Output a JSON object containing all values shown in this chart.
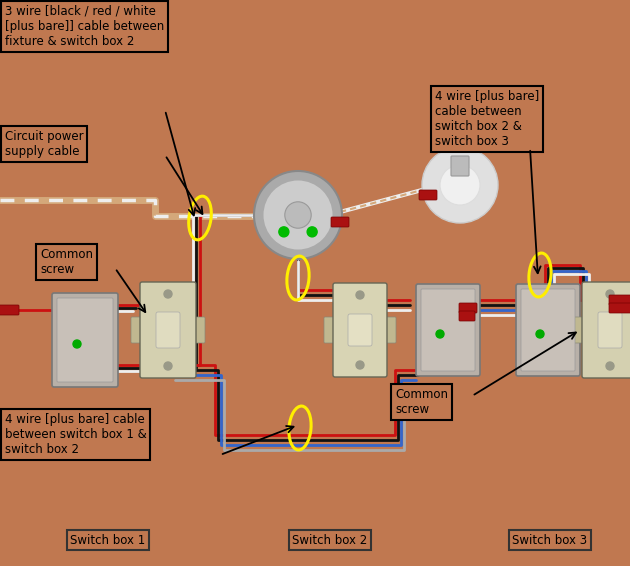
{
  "bg_color": "#c07850",
  "fig_width": 6.3,
  "fig_height": 5.66,
  "dpi": 100,
  "labels": {
    "top_left_box": "3 wire [black / red / white\n[plus bare]] cable between\nfixture & switch box 2",
    "power_box": "Circuit power\nsupply cable",
    "top_right_box": "4 wire [plus bare]\ncable between\nswitch box 2 &\nswitch box 3",
    "common_screw_left": "Common\nscrew",
    "common_screw_right": "Common\nscrew",
    "bottom_left_box": "4 wire [plus bare] cable\nbetween switch box 1 &\nswitch box 2",
    "switch_box_1": "Switch box 1",
    "switch_box_2": "Switch box 2",
    "switch_box_3": "Switch box 3"
  },
  "wire_colors": {
    "black": "#111111",
    "red": "#cc1111",
    "white": "#eeeeee",
    "blue": "#3366cc",
    "gray": "#aaaaaa",
    "tan": "#d4a87a",
    "darkred": "#880000"
  },
  "label_font_size": 8.5
}
